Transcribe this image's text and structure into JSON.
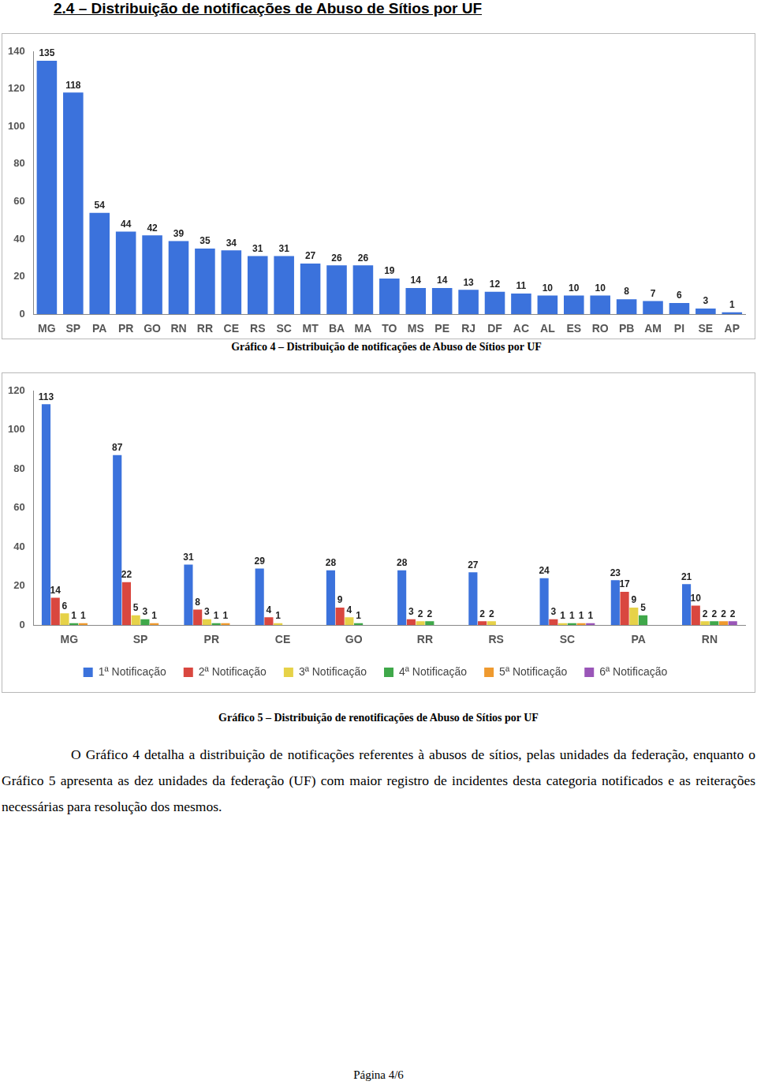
{
  "heading": "2.4 – Distribuição de notificações de Abuso de Sítios por UF",
  "chart_data": [
    {
      "type": "bar",
      "title": "Gráfico 4 – Distribuição de notificações de Abuso de Sítios por UF",
      "categories": [
        "MG",
        "SP",
        "PA",
        "PR",
        "GO",
        "RN",
        "RR",
        "CE",
        "RS",
        "SC",
        "MT",
        "BA",
        "MA",
        "TO",
        "MS",
        "PE",
        "RJ",
        "DF",
        "AC",
        "AL",
        "ES",
        "RO",
        "PB",
        "AM",
        "PI",
        "SE",
        "AP"
      ],
      "values": [
        135,
        118,
        54,
        44,
        42,
        39,
        35,
        34,
        31,
        31,
        27,
        26,
        26,
        19,
        14,
        14,
        13,
        12,
        11,
        10,
        10,
        10,
        8,
        7,
        6,
        3,
        1
      ],
      "color": "#3b72dc",
      "ylim": [
        0,
        140
      ],
      "yticks": [
        0,
        20,
        40,
        60,
        80,
        100,
        120,
        140
      ],
      "grid": false,
      "data_labels": true
    },
    {
      "type": "bar",
      "title": "Gráfico 5 – Distribuição de renotificações de Abuso de Sítios por UF",
      "categories": [
        "MG",
        "SP",
        "PR",
        "CE",
        "GO",
        "RR",
        "RS",
        "SC",
        "PA",
        "RN"
      ],
      "series": [
        {
          "name": "1ª Notificação",
          "color": "#3b72dc",
          "values": [
            113,
            87,
            31,
            29,
            28,
            28,
            27,
            24,
            23,
            21
          ]
        },
        {
          "name": "2ª Notificação",
          "color": "#d9473f",
          "values": [
            14,
            22,
            8,
            4,
            9,
            3,
            2,
            3,
            17,
            10
          ]
        },
        {
          "name": "3ª Notificação",
          "color": "#e6d248",
          "values": [
            6,
            5,
            3,
            1,
            4,
            2,
            2,
            1,
            9,
            2
          ]
        },
        {
          "name": "4ª Notificação",
          "color": "#3fa84a",
          "values": [
            1,
            3,
            1,
            null,
            1,
            2,
            null,
            1,
            5,
            2
          ]
        },
        {
          "name": "5ª Notificação",
          "color": "#ef9a2f",
          "values": [
            1,
            1,
            1,
            null,
            null,
            null,
            null,
            1,
            null,
            2
          ]
        },
        {
          "name": "6ª Notificação",
          "color": "#9a56b8",
          "values": [
            null,
            null,
            null,
            null,
            null,
            null,
            null,
            1,
            null,
            2
          ]
        }
      ],
      "ylim": [
        0,
        120
      ],
      "yticks": [
        0,
        20,
        40,
        60,
        80,
        100,
        120
      ],
      "grid": false,
      "legend": "bottom",
      "data_labels": true
    }
  ],
  "paragraph": "O Gráfico 4 detalha a distribuição de notificações referentes à abusos de sítios, pelas unidades da federação, enquanto o Gráfico 5 apresenta as dez unidades da federação (UF) com maior registro de incidentes desta categoria notificados e as reiterações necessárias para resolução dos mesmos.",
  "footer": "Página 4/6"
}
